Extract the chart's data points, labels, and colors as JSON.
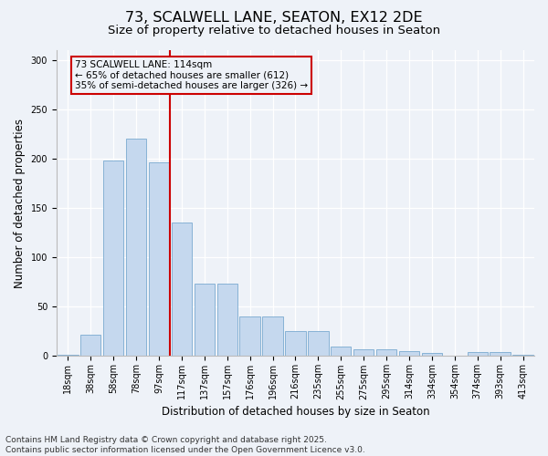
{
  "title": "73, SCALWELL LANE, SEATON, EX12 2DE",
  "subtitle": "Size of property relative to detached houses in Seaton",
  "xlabel": "Distribution of detached houses by size in Seaton",
  "ylabel": "Number of detached properties",
  "categories": [
    "18sqm",
    "38sqm",
    "58sqm",
    "78sqm",
    "97sqm",
    "117sqm",
    "137sqm",
    "157sqm",
    "176sqm",
    "196sqm",
    "216sqm",
    "235sqm",
    "255sqm",
    "275sqm",
    "295sqm",
    "314sqm",
    "334sqm",
    "354sqm",
    "374sqm",
    "393sqm",
    "413sqm"
  ],
  "values": [
    1,
    22,
    198,
    220,
    196,
    135,
    73,
    73,
    40,
    40,
    25,
    25,
    10,
    7,
    7,
    5,
    3,
    0,
    4,
    4,
    1
  ],
  "bar_color": "#c5d8ee",
  "bar_edge_color": "#7aaad0",
  "vline_color": "#cc0000",
  "annotation_text": "73 SCALWELL LANE: 114sqm\n← 65% of detached houses are smaller (612)\n35% of semi-detached houses are larger (326) →",
  "ylim": [
    0,
    310
  ],
  "yticks": [
    0,
    50,
    100,
    150,
    200,
    250,
    300
  ],
  "background_color": "#eef2f8",
  "footer": "Contains HM Land Registry data © Crown copyright and database right 2025.\nContains public sector information licensed under the Open Government Licence v3.0.",
  "title_fontsize": 11.5,
  "subtitle_fontsize": 9.5,
  "axis_label_fontsize": 8.5,
  "tick_fontsize": 7,
  "footer_fontsize": 6.5,
  "annotation_fontsize": 7.5
}
